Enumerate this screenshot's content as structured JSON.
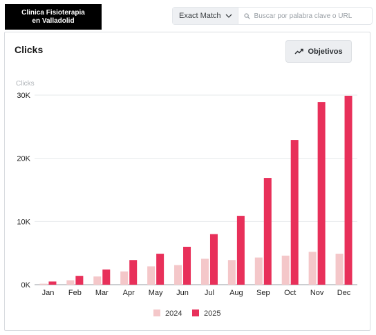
{
  "brand": {
    "line1": "Clinica Fisioterapia",
    "line2": "en Valladolid"
  },
  "search": {
    "match_type": "Exact Match",
    "placeholder": "Buscar por palabra clave o URL",
    "value": ""
  },
  "card": {
    "title": "Clicks",
    "goals_label": "Objetivos"
  },
  "icons": {
    "match_dropdown": "chevron-down-icon",
    "search": "search-icon",
    "goals": "trend-up-icon"
  },
  "chart_data": {
    "type": "bar",
    "ylabel": "Clicks",
    "ylim": [
      0,
      30000
    ],
    "yticks": [
      {
        "value": 0,
        "label": "0K"
      },
      {
        "value": 10000,
        "label": "10K"
      },
      {
        "value": 20000,
        "label": "20K"
      },
      {
        "value": 30000,
        "label": "30K"
      }
    ],
    "categories": [
      "Jan",
      "Feb",
      "Mar",
      "Apr",
      "May",
      "Jun",
      "Jul",
      "Aug",
      "Sep",
      "Oct",
      "Nov",
      "Dec"
    ],
    "series": [
      {
        "name": "2024",
        "color": "#f4c7c9",
        "values": [
          150,
          700,
          1300,
          2100,
          2900,
          3100,
          4100,
          3900,
          4300,
          4600,
          5200,
          4900
        ]
      },
      {
        "name": "2025",
        "color": "#e8305a",
        "values": [
          500,
          1400,
          2400,
          3900,
          4900,
          6000,
          8000,
          10900,
          16900,
          22900,
          28900,
          29900
        ]
      }
    ],
    "grid": true,
    "legend_position": "bottom"
  }
}
